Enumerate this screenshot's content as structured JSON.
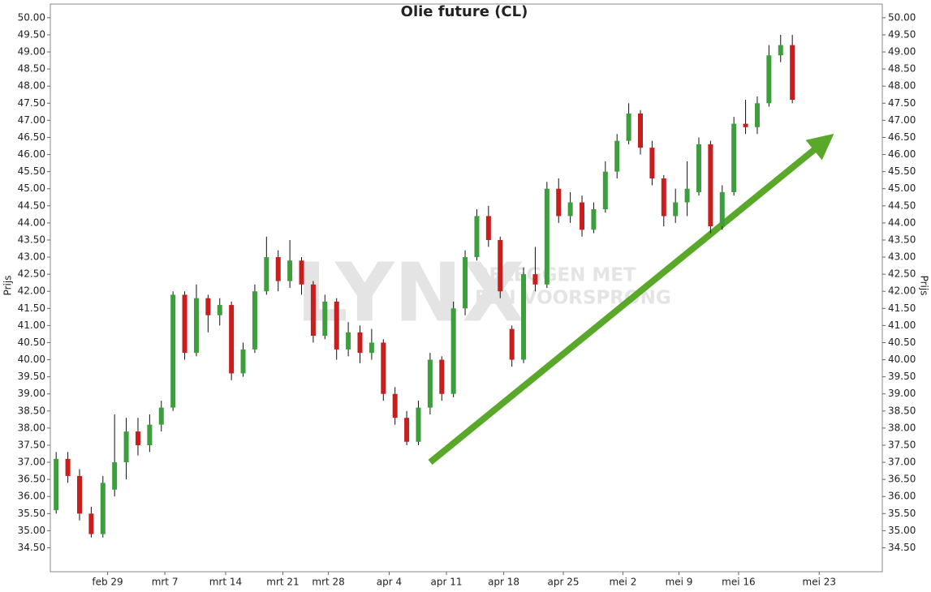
{
  "chart_data": {
    "type": "candlestick",
    "title": "Olie future (CL)",
    "y_label": "Prijs",
    "watermark": [
      "LYNX",
      "BELEGGEN MET",
      "EEN VOORSPRONG"
    ],
    "up_color": "#3c9e3c",
    "down_color": "#c81e1e",
    "xlim": [
      0,
      71.2
    ],
    "xticks": [
      {
        "value": 4.9,
        "label": "feb 29"
      },
      {
        "value": 9.8,
        "label": "mrt 7"
      },
      {
        "value": 15.0,
        "label": "mrt 14"
      },
      {
        "value": 19.9,
        "label": "mrt 21"
      },
      {
        "value": 23.8,
        "label": "mrt 28"
      },
      {
        "value": 29.0,
        "label": "apr 4"
      },
      {
        "value": 33.9,
        "label": "apr 11"
      },
      {
        "value": 38.8,
        "label": "apr 18"
      },
      {
        "value": 43.9,
        "label": "apr 25"
      },
      {
        "value": 49.0,
        "label": "mei 2"
      },
      {
        "value": 53.8,
        "label": "mei 9"
      },
      {
        "value": 58.9,
        "label": "mei 16"
      },
      {
        "value": 65.8,
        "label": "mei 23"
      }
    ],
    "ylim": [
      33.8,
      50.4
    ],
    "yticks": [
      {
        "value": 34.5,
        "label": "34.50"
      },
      {
        "value": 35,
        "label": "35.00"
      },
      {
        "value": 35.5,
        "label": "35.50"
      },
      {
        "value": 36,
        "label": "36.00"
      },
      {
        "value": 36.5,
        "label": "36.50"
      },
      {
        "value": 37,
        "label": "37.00"
      },
      {
        "value": 37.5,
        "label": "37.50"
      },
      {
        "value": 38,
        "label": "38.00"
      },
      {
        "value": 38.5,
        "label": "38.50"
      },
      {
        "value": 39,
        "label": "39.00"
      },
      {
        "value": 39.5,
        "label": "39.50"
      },
      {
        "value": 40,
        "label": "40.00"
      },
      {
        "value": 40.5,
        "label": "40.50"
      },
      {
        "value": 41,
        "label": "41.00"
      },
      {
        "value": 41.5,
        "label": "41.50"
      },
      {
        "value": 42,
        "label": "42.00"
      },
      {
        "value": 42.5,
        "label": "42.50"
      },
      {
        "value": 43,
        "label": "43.00"
      },
      {
        "value": 43.5,
        "label": "43.50"
      },
      {
        "value": 44,
        "label": "44.00"
      },
      {
        "value": 44.5,
        "label": "44.50"
      },
      {
        "value": 45,
        "label": "45.00"
      },
      {
        "value": 45.5,
        "label": "45.50"
      },
      {
        "value": 46,
        "label": "46.00"
      },
      {
        "value": 46.5,
        "label": "46.50"
      },
      {
        "value": 47,
        "label": "47.00"
      },
      {
        "value": 47.5,
        "label": "47.50"
      },
      {
        "value": 48,
        "label": "48.00"
      },
      {
        "value": 48.5,
        "label": "48.50"
      },
      {
        "value": 49,
        "label": "49.00"
      },
      {
        "value": 49.5,
        "label": "49.50"
      },
      {
        "value": 50,
        "label": "50.00"
      }
    ],
    "x": [
      0.5,
      1.5,
      2.5,
      3.5,
      4.5,
      5.5,
      6.5,
      7.5,
      8.5,
      9.5,
      10.5,
      11.5,
      12.5,
      13.5,
      14.5,
      15.5,
      16.5,
      17.5,
      18.5,
      19.5,
      20.5,
      21.5,
      22.5,
      23.5,
      24.5,
      25.5,
      26.5,
      27.5,
      28.5,
      29.5,
      30.5,
      31.5,
      32.5,
      33.5,
      34.5,
      35.5,
      36.5,
      37.5,
      38.5,
      39.5,
      40.5,
      41.5,
      42.5,
      43.5,
      44.5,
      45.5,
      46.5,
      47.5,
      48.5,
      49.5,
      50.5,
      51.5,
      52.5,
      53.5,
      54.5,
      55.5,
      56.5,
      57.5,
      58.5,
      59.5,
      60.5,
      61.5,
      62.5,
      63.5
    ],
    "open": [
      35.6,
      37.1,
      36.6,
      35.5,
      34.9,
      36.2,
      37.0,
      37.9,
      37.5,
      38.1,
      38.6,
      41.9,
      40.2,
      41.8,
      41.3,
      41.6,
      39.6,
      40.3,
      42.0,
      43.0,
      42.3,
      42.9,
      42.2,
      40.7,
      41.7,
      40.3,
      40.8,
      40.2,
      40.5,
      39.0,
      38.3,
      37.6,
      38.6,
      40.0,
      39.0,
      41.5,
      43.0,
      44.2,
      43.5,
      40.9,
      40.0,
      42.5,
      42.2,
      45.0,
      44.2,
      44.6,
      43.8,
      44.4,
      45.5,
      46.4,
      47.2,
      46.2,
      45.3,
      44.2,
      44.6,
      44.9,
      46.3,
      43.9,
      44.9,
      46.9,
      46.8,
      47.5,
      48.9,
      49.2
    ],
    "high": [
      37.3,
      37.3,
      36.8,
      35.7,
      36.6,
      38.4,
      38.3,
      38.3,
      38.4,
      38.8,
      42.0,
      42.0,
      42.2,
      41.9,
      41.8,
      41.7,
      40.5,
      42.2,
      43.6,
      43.2,
      43.5,
      43.0,
      42.3,
      41.9,
      41.8,
      41.1,
      41.0,
      40.9,
      40.6,
      39.2,
      38.5,
      38.8,
      40.2,
      40.1,
      41.7,
      43.2,
      44.4,
      44.5,
      43.6,
      41.0,
      42.7,
      43.3,
      45.2,
      45.3,
      44.9,
      44.8,
      44.6,
      45.8,
      46.6,
      47.5,
      47.3,
      46.4,
      45.4,
      45.0,
      45.8,
      46.5,
      46.4,
      45.1,
      47.1,
      47.6,
      47.7,
      49.2,
      49.5,
      49.5
    ],
    "low": [
      35.5,
      36.4,
      35.3,
      34.8,
      34.8,
      36.0,
      36.5,
      37.2,
      37.3,
      37.9,
      38.5,
      40.0,
      40.1,
      40.8,
      41.0,
      39.4,
      39.5,
      40.2,
      41.9,
      42.0,
      42.1,
      41.9,
      40.5,
      40.6,
      40.0,
      40.1,
      39.9,
      40.0,
      38.8,
      38.1,
      37.5,
      37.5,
      38.4,
      38.8,
      38.9,
      41.3,
      42.9,
      43.3,
      41.8,
      39.8,
      39.9,
      42.0,
      42.1,
      44.0,
      44.0,
      43.6,
      43.7,
      44.3,
      45.3,
      46.3,
      46.0,
      45.1,
      43.9,
      44.0,
      44.2,
      44.8,
      43.7,
      43.8,
      44.8,
      46.6,
      46.6,
      47.4,
      48.7,
      47.5
    ],
    "close": [
      37.1,
      36.6,
      35.5,
      34.9,
      36.4,
      37.0,
      37.9,
      37.5,
      38.1,
      38.6,
      41.9,
      40.2,
      41.8,
      41.3,
      41.6,
      39.6,
      40.3,
      42.0,
      43.0,
      42.3,
      42.9,
      42.2,
      40.7,
      41.7,
      40.3,
      40.8,
      40.2,
      40.5,
      39.0,
      38.3,
      37.6,
      38.6,
      40.0,
      39.0,
      41.5,
      43.0,
      44.2,
      43.5,
      42.0,
      40.0,
      42.5,
      42.2,
      45.0,
      44.2,
      44.6,
      43.8,
      44.4,
      45.5,
      46.4,
      47.2,
      46.2,
      45.3,
      44.2,
      44.6,
      45.0,
      46.3,
      43.9,
      44.9,
      46.9,
      46.8,
      47.5,
      48.9,
      49.2,
      47.6
    ]
  }
}
